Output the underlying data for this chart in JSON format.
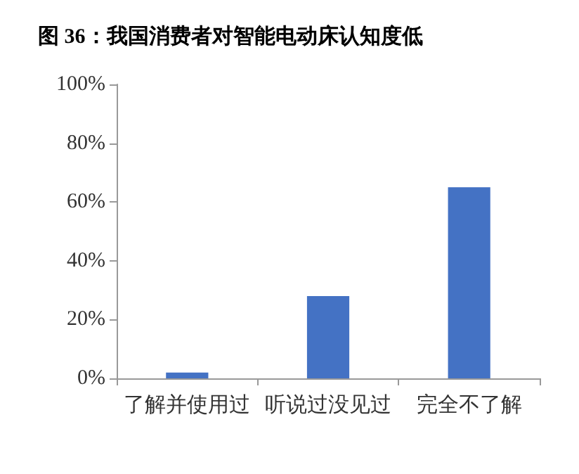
{
  "chart_data": {
    "type": "bar",
    "title": "图 36：我国消费者对智能电动床认知度低",
    "categories": [
      "了解并使用过",
      "听说过没见过",
      "完全不了解"
    ],
    "values": [
      2,
      28,
      65
    ],
    "color": "#4472c4",
    "ylim": [
      0,
      100
    ],
    "yticks": [
      {
        "value": 0,
        "label": "0%"
      },
      {
        "value": 20,
        "label": "20%"
      },
      {
        "value": 40,
        "label": "40%"
      },
      {
        "value": 60,
        "label": "60%"
      },
      {
        "value": 80,
        "label": "80%"
      },
      {
        "value": 100,
        "label": "100%"
      }
    ],
    "grid": false
  }
}
